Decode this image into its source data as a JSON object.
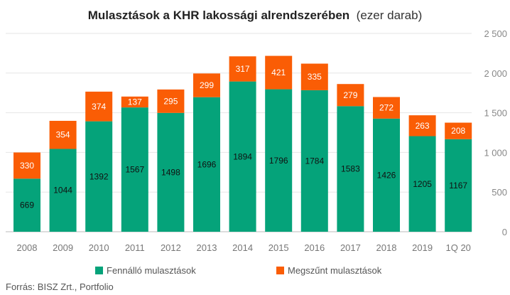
{
  "chart_data": {
    "type": "bar",
    "stacked": true,
    "title": "Mulasztások a KHR lakossági alrendszerében",
    "subtitle": "(ezer darab)",
    "categories": [
      "2008",
      "2009",
      "2010",
      "2011",
      "2012",
      "2013",
      "2014",
      "2015",
      "2016",
      "2017",
      "2018",
      "2019",
      "1Q 20"
    ],
    "series": [
      {
        "name": "Fennálló mulasztások",
        "color": "#05a37a",
        "values": [
          669,
          1044,
          1392,
          1567,
          1498,
          1696,
          1894,
          1796,
          1784,
          1583,
          1426,
          1205,
          1167
        ]
      },
      {
        "name": "Megszűnt mulasztások",
        "color": "#fa5d05",
        "values": [
          330,
          354,
          374,
          137,
          295,
          299,
          317,
          421,
          335,
          279,
          272,
          263,
          208
        ]
      }
    ],
    "ylim": [
      0,
      2500
    ],
    "yticks": [
      0,
      500,
      1000,
      1500,
      2000,
      2500
    ],
    "ytick_labels": [
      "0",
      "500",
      "1 000",
      "1 500",
      "2 000",
      "2 500"
    ],
    "y_axis_side": "right",
    "grid": true,
    "legend_position": "bottom",
    "xlabel": "",
    "ylabel": ""
  },
  "source": "Forrás: BISZ Zrt., Portfolio"
}
